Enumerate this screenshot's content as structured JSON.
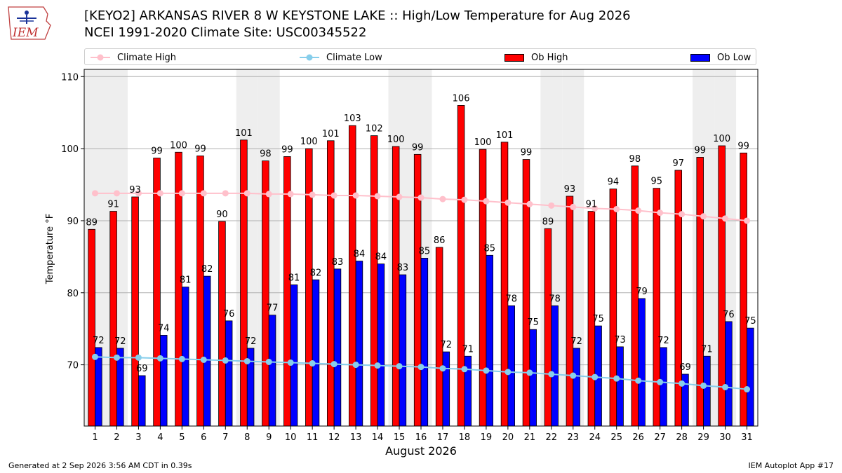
{
  "header": {
    "logo_text": "IEM",
    "title_line1": "[KEYO2] ARKANSAS RIVER 8 W KEYSTONE LAKE :: High/Low Temperature for Aug 2026",
    "title_line2": "NCEI 1991-2020 Climate Site: USC00345522"
  },
  "legend": {
    "climate_high": "Climate High",
    "climate_low": "Climate Low",
    "ob_high": "Ob High",
    "ob_low": "Ob Low"
  },
  "footer": {
    "left": "Generated at 2 Sep 2026 3:56 AM CDT in 0.39s",
    "right": "IEM Autoplot App #17"
  },
  "chart_data": {
    "type": "bar",
    "xlabel": "August 2026",
    "ylabel": "Temperature °F",
    "ylim": [
      61.5,
      111
    ],
    "yticks": [
      70,
      80,
      90,
      100,
      110
    ],
    "grid": true,
    "legend_position": "top",
    "categories": [
      "1",
      "2",
      "3",
      "4",
      "5",
      "6",
      "7",
      "8",
      "9",
      "10",
      "11",
      "12",
      "13",
      "14",
      "15",
      "16",
      "17",
      "18",
      "19",
      "20",
      "21",
      "22",
      "23",
      "24",
      "25",
      "26",
      "27",
      "28",
      "29",
      "30",
      "31"
    ],
    "shaded_days": [
      1,
      2,
      8,
      9,
      15,
      16,
      22,
      23,
      29,
      30
    ],
    "series": [
      {
        "name": "Ob High",
        "kind": "bar",
        "color": "#ff0000",
        "values": [
          88.8,
          91.3,
          93.3,
          98.7,
          99.5,
          99.0,
          89.9,
          101.2,
          98.3,
          98.9,
          100.0,
          101.1,
          103.2,
          101.8,
          100.3,
          99.2,
          86.3,
          106.0,
          99.9,
          100.9,
          98.5,
          88.9,
          93.4,
          91.3,
          94.4,
          97.6,
          94.5,
          97.0,
          98.8,
          100.4,
          99.4
        ],
        "labels": [
          "89",
          "91",
          "93",
          "99",
          "100",
          "99",
          "90",
          "101",
          "98",
          "99",
          "100",
          "101",
          "103",
          "102",
          "100",
          "99",
          "86",
          "106",
          "100",
          "101",
          "99",
          "89",
          "93",
          "91",
          "94",
          "98",
          "95",
          "97",
          "99",
          "100",
          "99"
        ]
      },
      {
        "name": "Ob Low",
        "kind": "bar",
        "color": "#0000ff",
        "values": [
          72.4,
          72.3,
          68.5,
          74.1,
          80.8,
          82.3,
          76.1,
          72.3,
          76.9,
          81.1,
          81.8,
          83.3,
          84.4,
          84.0,
          82.5,
          84.8,
          71.8,
          71.2,
          85.2,
          78.2,
          74.9,
          78.2,
          72.3,
          75.4,
          72.5,
          79.2,
          72.4,
          68.7,
          71.2,
          76.0,
          75.1
        ],
        "labels": [
          "72",
          "72",
          "69",
          "74",
          "81",
          "82",
          "76",
          "72",
          "77",
          "81",
          "82",
          "83",
          "84",
          "84",
          "83",
          "85",
          "72",
          "71",
          "85",
          "78",
          "75",
          "78",
          "72",
          "75",
          "73",
          "79",
          "72",
          "69",
          "71",
          "76",
          "75"
        ]
      },
      {
        "name": "Climate High",
        "kind": "line",
        "color": "#ffc0cb",
        "values": [
          93.8,
          93.8,
          93.8,
          93.8,
          93.8,
          93.8,
          93.8,
          93.8,
          93.7,
          93.7,
          93.6,
          93.5,
          93.5,
          93.4,
          93.3,
          93.2,
          93.0,
          92.9,
          92.7,
          92.5,
          92.3,
          92.1,
          91.9,
          91.7,
          91.6,
          91.4,
          91.1,
          90.9,
          90.6,
          90.3,
          90.0
        ]
      },
      {
        "name": "Climate Low",
        "kind": "line",
        "color": "#87ceeb",
        "values": [
          71.1,
          71.0,
          71.0,
          70.9,
          70.8,
          70.7,
          70.6,
          70.5,
          70.4,
          70.3,
          70.2,
          70.1,
          70.0,
          69.9,
          69.8,
          69.7,
          69.5,
          69.4,
          69.2,
          69.0,
          68.9,
          68.7,
          68.5,
          68.3,
          68.1,
          67.8,
          67.6,
          67.4,
          67.1,
          66.9,
          66.6
        ]
      }
    ]
  }
}
